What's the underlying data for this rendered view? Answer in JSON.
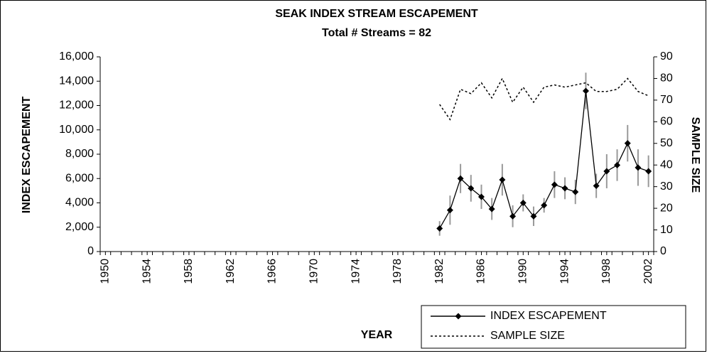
{
  "chart_data": {
    "type": "line",
    "title": "SEAK INDEX STREAM ESCAPEMENT",
    "subtitle": "Total # Streams = 82",
    "x_label": "YEAR",
    "y_label": "INDEX ESCAPEMENT",
    "y2_label": "SAMPLE SIZE",
    "x": [
      1982,
      1983,
      1984,
      1985,
      1986,
      1987,
      1988,
      1989,
      1990,
      1991,
      1992,
      1993,
      1994,
      1995,
      1996,
      1997,
      1998,
      1999,
      2000,
      2001,
      2002
    ],
    "series": [
      {
        "name": "INDEX ESCAPEMENT",
        "color": "#000000",
        "marker": "diamond",
        "linestyle": "solid",
        "values": [
          1900,
          3400,
          6000,
          5200,
          4500,
          3500,
          5900,
          2900,
          4000,
          2900,
          3800,
          5500,
          5200,
          4900,
          13200,
          5400,
          6600,
          7100,
          8900,
          6900,
          6600
        ],
        "errors": [
          600,
          1200,
          1200,
          1100,
          1000,
          900,
          1300,
          900,
          700,
          800,
          600,
          1100,
          900,
          1000,
          1500,
          1000,
          1400,
          1300,
          1500,
          1500,
          1300
        ],
        "error_color": "#999999"
      },
      {
        "name": "SAMPLE SIZE",
        "color": "#000000",
        "linestyle": "dotted",
        "axis": "y2",
        "values": [
          68,
          61,
          75,
          73,
          78,
          71,
          80,
          69,
          76,
          69,
          76,
          77,
          76,
          77,
          78,
          74,
          74,
          75,
          80,
          74,
          72
        ]
      }
    ],
    "xlim": [
      1949.5,
      2002.5
    ],
    "xticks": [
      1950,
      1954,
      1958,
      1962,
      1966,
      1970,
      1974,
      1978,
      1982,
      1986,
      1990,
      1994,
      1998,
      2002
    ],
    "ylim": [
      0,
      16000
    ],
    "yticks": [
      0,
      {
        "value": 2000,
        "label": "2,000"
      },
      {
        "value": 4000,
        "label": "4,000"
      },
      {
        "value": 6000,
        "label": "6,000"
      },
      {
        "value": 8000,
        "label": "8,000"
      },
      {
        "value": 10000,
        "label": "10,000"
      },
      {
        "value": 12000,
        "label": "12,000"
      },
      {
        "value": 14000,
        "label": "14,000"
      },
      {
        "value": 16000,
        "label": "16,000"
      }
    ],
    "y2lim": [
      0,
      90
    ],
    "y2ticks": [
      0,
      10,
      20,
      30,
      40,
      50,
      60,
      70,
      80,
      90
    ],
    "grid": false,
    "legend": "bottom-right"
  }
}
